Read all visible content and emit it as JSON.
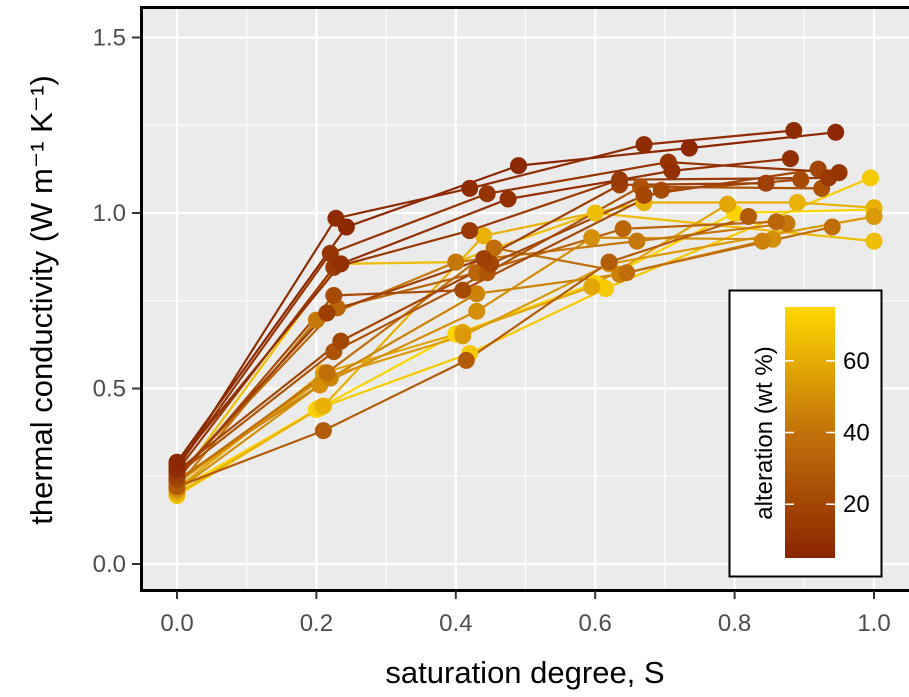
{
  "chart_data": {
    "type": "line",
    "xlabel": "saturation degree, S",
    "ylabel": "thermal conductivity (W m⁻¹ K⁻¹)",
    "xlim": [
      -0.05,
      1.05
    ],
    "ylim": [
      -0.05,
      1.6
    ],
    "xticks": [
      "0.0",
      "0.2",
      "0.4",
      "0.6",
      "0.8",
      "1.0"
    ],
    "yticks": [
      "0.0",
      "0.5",
      "1.0",
      "1.5"
    ],
    "grid": true,
    "panel_background": "#ebebeb",
    "legend": {
      "title": "alteration (wt %)",
      "placement": "bottom-right inside",
      "ticks": [
        "20",
        "40",
        "60"
      ],
      "range": [
        5,
        75
      ],
      "color_low": "#8b2500",
      "color_mid": "#c2720a",
      "color_high": "#ffd700"
    },
    "series": [
      {
        "alteration": 6,
        "x": [
          0,
          0.243,
          0.49,
          0.735,
          0.945
        ],
        "y": [
          0.29,
          0.96,
          1.135,
          1.185,
          1.23
        ]
      },
      {
        "alteration": 8,
        "x": [
          0,
          0.228,
          0.42,
          0.67,
          0.885
        ],
        "y": [
          0.27,
          0.985,
          1.07,
          1.195,
          1.235
        ]
      },
      {
        "alteration": 10,
        "x": [
          0,
          0.235,
          0.475,
          0.71,
          0.88
        ],
        "y": [
          0.285,
          0.855,
          1.04,
          1.12,
          1.155
        ]
      },
      {
        "alteration": 12,
        "x": [
          0,
          0.22,
          0.445,
          0.705,
          0.95
        ],
        "y": [
          0.275,
          0.885,
          1.055,
          1.145,
          1.115
        ]
      },
      {
        "alteration": 14,
        "x": [
          0,
          0.225,
          0.42,
          0.635,
          0.935
        ],
        "y": [
          0.265,
          0.845,
          0.95,
          1.095,
          1.1
        ]
      },
      {
        "alteration": 17,
        "x": [
          0,
          0.215,
          0.44,
          0.635,
          0.845
        ],
        "y": [
          0.25,
          0.715,
          0.87,
          1.08,
          1.085
        ]
      },
      {
        "alteration": 20,
        "x": [
          0,
          0.235,
          0.45,
          0.67,
          0.92
        ],
        "y": [
          0.265,
          0.635,
          0.855,
          1.05,
          1.125
        ]
      },
      {
        "alteration": 22,
        "x": [
          0,
          0.225,
          0.41,
          0.695,
          0.895
        ],
        "y": [
          0.24,
          0.765,
          0.78,
          1.065,
          1.095
        ]
      },
      {
        "alteration": 26,
        "x": [
          0,
          0.225,
          0.445,
          0.665,
          0.925
        ],
        "y": [
          0.255,
          0.605,
          0.83,
          1.075,
          1.07
        ]
      },
      {
        "alteration": 30,
        "x": [
          0,
          0.21,
          0.415,
          0.62,
          0.82
        ],
        "y": [
          0.22,
          0.38,
          0.58,
          0.86,
          0.99
        ]
      },
      {
        "alteration": 34,
        "x": [
          0,
          0.23,
          0.43,
          0.64,
          0.86
        ],
        "y": [
          0.25,
          0.73,
          0.83,
          0.955,
          0.975
        ]
      },
      {
        "alteration": 38,
        "x": [
          0,
          0.215,
          0.455,
          0.645,
          0.94
        ],
        "y": [
          0.235,
          0.545,
          0.9,
          0.83,
          0.96
        ]
      },
      {
        "alteration": 42,
        "x": [
          0,
          0.2,
          0.4,
          0.66,
          0.875
        ],
        "y": [
          0.22,
          0.695,
          0.86,
          0.92,
          0.97
        ]
      },
      {
        "alteration": 46,
        "x": [
          0,
          0.22,
          0.43,
          0.635,
          0.84
        ],
        "y": [
          0.24,
          0.53,
          0.77,
          0.825,
          0.92
        ]
      },
      {
        "alteration": 50,
        "x": [
          0,
          0.205,
          0.43,
          0.595,
          0.855
        ],
        "y": [
          0.21,
          0.51,
          0.72,
          0.93,
          0.925
        ]
      },
      {
        "alteration": 54,
        "x": [
          0,
          0.21,
          0.41,
          0.62,
          1.0
        ],
        "y": [
          0.23,
          0.53,
          0.65,
          0.855,
          0.99
        ]
      },
      {
        "alteration": 58,
        "x": [
          0,
          0.21,
          0.41,
          0.595,
          0.79
        ],
        "y": [
          0.215,
          0.545,
          0.66,
          0.79,
          1.025
        ]
      },
      {
        "alteration": 62,
        "x": [
          0,
          0.21,
          0.44,
          0.67,
          0.89,
          1.0
        ],
        "y": [
          0.2,
          0.45,
          0.935,
          1.03,
          1.03,
          1.015
        ]
      },
      {
        "alteration": 66,
        "x": [
          0,
          0.23,
          0.4,
          0.6,
          1.0
        ],
        "y": [
          0.235,
          0.855,
          0.86,
          1.0,
          0.92
        ]
      },
      {
        "alteration": 70,
        "x": [
          0,
          0.205,
          0.42,
          0.615,
          0.995
        ],
        "y": [
          0.195,
          0.445,
          0.6,
          0.785,
          1.1
        ]
      },
      {
        "alteration": 74,
        "x": [
          0,
          0.2,
          0.4,
          0.6,
          0.8,
          1.0
        ],
        "y": [
          0.21,
          0.44,
          0.655,
          0.8,
          1.0,
          1.01
        ]
      }
    ]
  }
}
